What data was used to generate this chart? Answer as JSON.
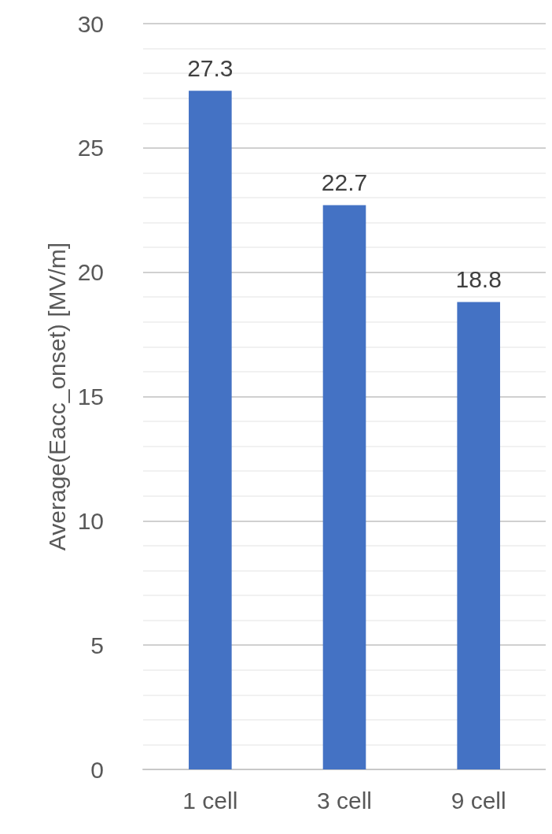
{
  "chart_data": {
    "type": "bar",
    "ylabel": "Average(Eacc_onset) [MV/m]",
    "categories": [
      "1 cell",
      "3 cell",
      "9 cell"
    ],
    "values": [
      27.3,
      22.7,
      18.8
    ],
    "color": "#4472c4",
    "data_labels": true,
    "ylim": [
      0,
      30
    ],
    "yticks": [
      0,
      5,
      10,
      15,
      20,
      25,
      30
    ],
    "grid": "y"
  }
}
